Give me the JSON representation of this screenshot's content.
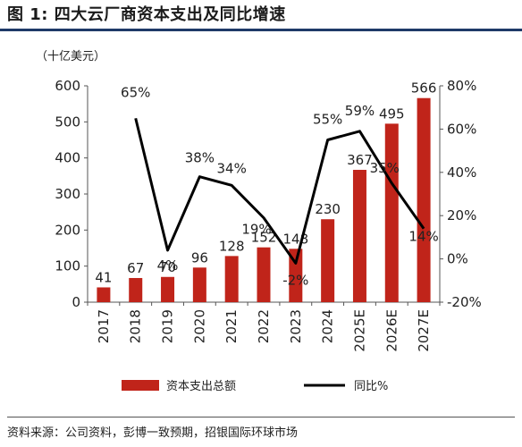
{
  "title": "图 1: 四大云厂商资本支出及同比增速",
  "unit_label": "（十亿美元）",
  "source": "资料来源：公司资料，彭博一致预期，招银国际环球市场",
  "colors": {
    "bar": "#c0241a",
    "line": "#000000",
    "header_rule": "#1f3a68"
  },
  "chart_data": {
    "type": "bar",
    "categories": [
      "2017",
      "2018",
      "2019",
      "2020",
      "2021",
      "2022",
      "2023",
      "2024",
      "2025E",
      "2026E",
      "2027E"
    ],
    "series": [
      {
        "name": "资本支出总额",
        "type": "bar",
        "axis": "left",
        "values": [
          41,
          67,
          70,
          96,
          128,
          152,
          148,
          230,
          367,
          495,
          566
        ]
      },
      {
        "name": "同比%",
        "type": "line",
        "axis": "right",
        "values": [
          null,
          65,
          4,
          38,
          34,
          19,
          -2,
          55,
          59,
          35,
          14
        ]
      }
    ],
    "bar_labels": [
      "41",
      "67",
      "70",
      "96",
      "128",
      "152",
      "148",
      "230",
      "367",
      "495",
      "566"
    ],
    "line_labels": [
      "",
      "65%",
      "4%",
      "38%",
      "34%",
      "19%",
      "-2%",
      "55%",
      "59%",
      "35%",
      "14%"
    ],
    "yleft": {
      "min": 0,
      "max": 600,
      "ticks": [
        "0",
        "100",
        "200",
        "300",
        "400",
        "500",
        "600"
      ]
    },
    "yright": {
      "min": -20,
      "max": 80,
      "ticks": [
        "-20%",
        "0%",
        "20%",
        "40%",
        "60%",
        "80%"
      ]
    },
    "legend": {
      "position": "bottom",
      "entries": [
        "资本支出总额",
        "同比%"
      ]
    },
    "grid": false
  }
}
